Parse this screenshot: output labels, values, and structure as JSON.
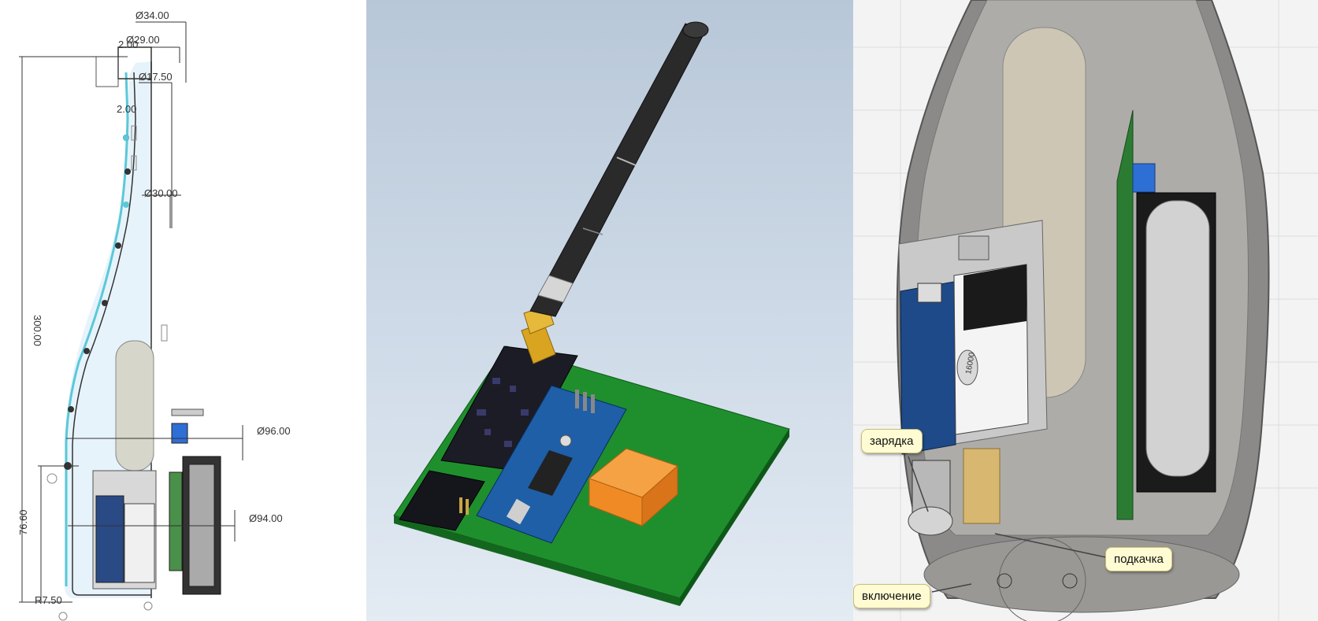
{
  "drawing": {
    "dims": {
      "d34": "Ø34.00",
      "d29": "Ø29.00",
      "d2a": "2.00",
      "d17": "Ø17.50",
      "d2b": "2.00",
      "d30": "Ø30.00",
      "len300": "300.00",
      "d96": "Ø96.00",
      "h76": "76.60",
      "d94": "Ø94.00",
      "r7": "R7.50"
    }
  },
  "board": {
    "chip_label": "16000"
  },
  "enclosure": {
    "callouts": {
      "charging": "зарядка",
      "pump": "подкачка",
      "power": "включение"
    }
  },
  "colors": {
    "profile_line": "#5bc8d8",
    "pcb_green": "#1f8f2e",
    "arduino_blue": "#1e5fa8",
    "connector_gold": "#d9a520",
    "relay_orange": "#f08a24",
    "callout_bg": "#fffbd2"
  }
}
